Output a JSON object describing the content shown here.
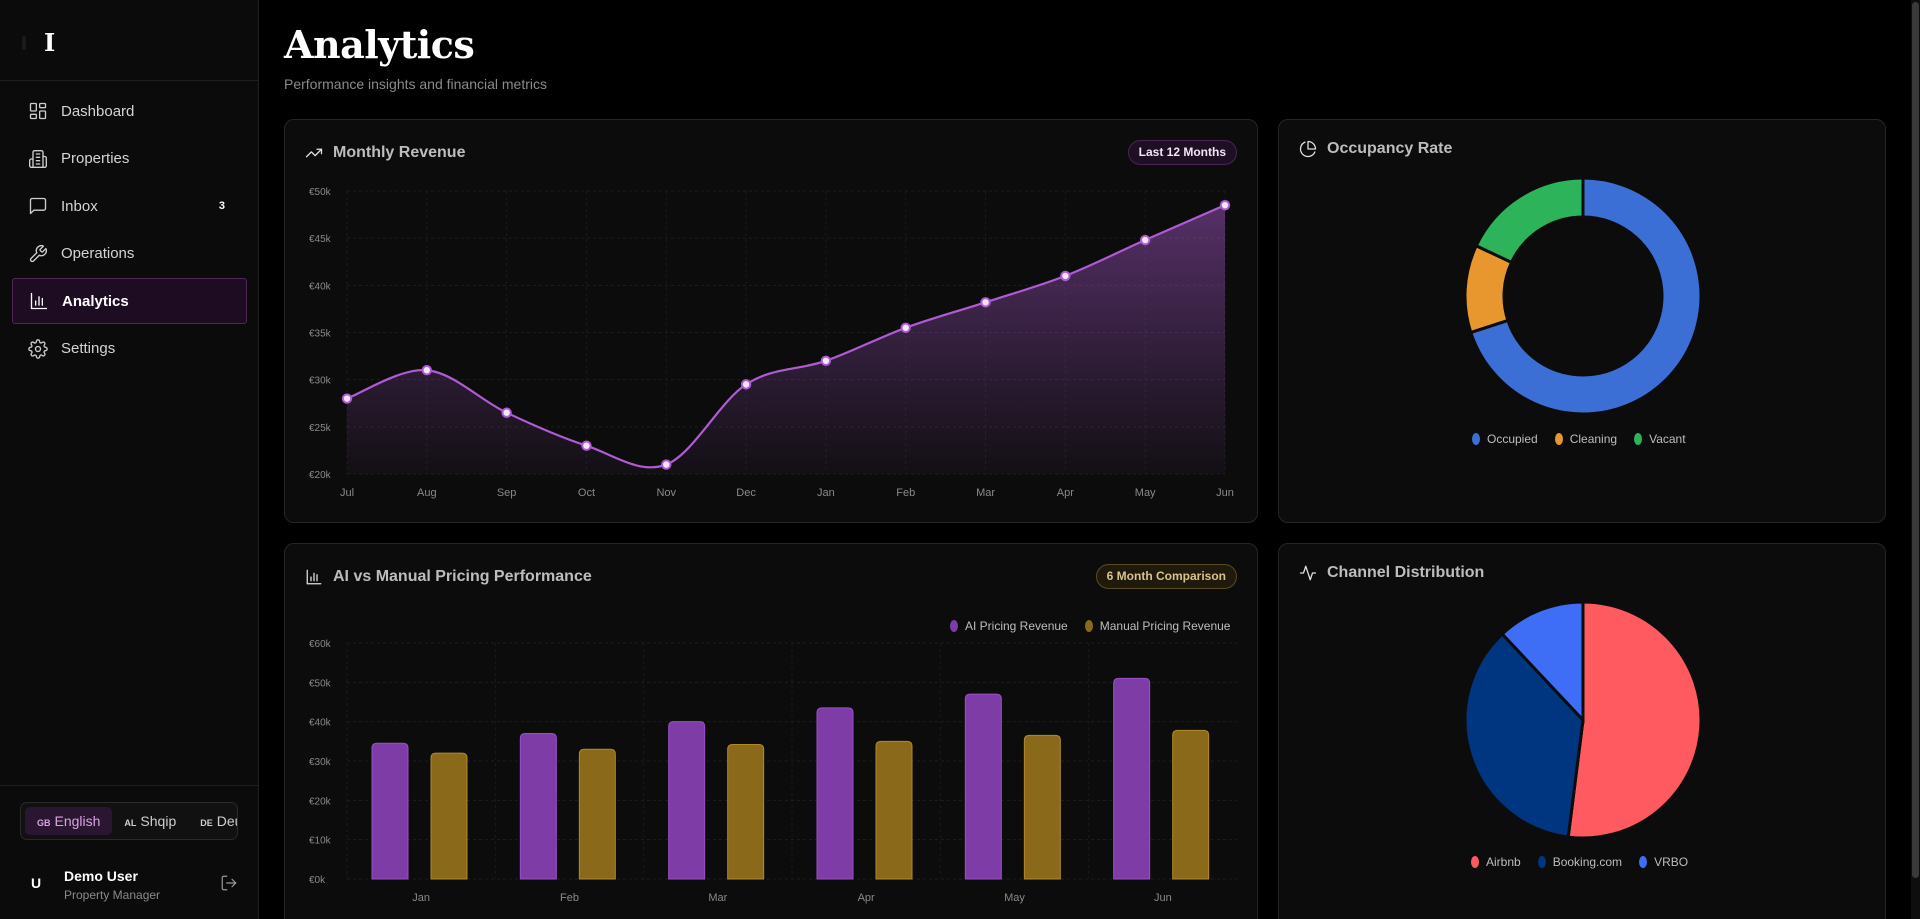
{
  "brand": {
    "logo_text": "I"
  },
  "sidebar": {
    "items": [
      {
        "label": "Dashboard",
        "icon": "layout-grid-icon"
      },
      {
        "label": "Properties",
        "icon": "building-icon"
      },
      {
        "label": "Inbox",
        "icon": "message-square-icon",
        "badge": "3"
      },
      {
        "label": "Operations",
        "icon": "wrench-icon"
      },
      {
        "label": "Analytics",
        "icon": "bar-chart-icon",
        "active": true
      },
      {
        "label": "Settings",
        "icon": "gear-icon"
      }
    ]
  },
  "languages": [
    {
      "code": "GB",
      "label": "English",
      "active": true
    },
    {
      "code": "AL",
      "label": "Shqip"
    },
    {
      "code": "DE",
      "label": "Deutsch"
    }
  ],
  "user": {
    "initial": "U",
    "name": "Demo User",
    "role": "Property Manager"
  },
  "page": {
    "title": "Analytics",
    "subtitle": "Performance insights and financial metrics"
  },
  "cards": {
    "revenue": {
      "title": "Monthly Revenue",
      "badge": "Last 12 Months"
    },
    "occupancy": {
      "title": "Occupancy Rate"
    },
    "pricing": {
      "title": "AI vs Manual Pricing Performance",
      "badge": "6 Month Comparison"
    },
    "channels": {
      "title": "Channel Distribution"
    }
  },
  "colors": {
    "accent_purple": "#b05bd6",
    "ai_bar": "#7e3da6",
    "manual_bar": "#8a6a1a",
    "occupied": "#3b6fd6",
    "cleaning": "#e8972e",
    "vacant": "#2db35a",
    "airbnb": "#ff5a5f",
    "booking": "#003580",
    "vrbo": "#3d6ef5"
  },
  "chart_data": [
    {
      "type": "area",
      "title": "Monthly Revenue",
      "categories": [
        "Jul",
        "Aug",
        "Sep",
        "Oct",
        "Nov",
        "Dec",
        "Jan",
        "Feb",
        "Mar",
        "Apr",
        "May",
        "Jun"
      ],
      "values": [
        28000,
        31000,
        26500,
        23000,
        21000,
        29500,
        32000,
        35500,
        38200,
        41000,
        44800,
        48500
      ],
      "ylim": [
        20000,
        50000
      ],
      "yticks": [
        "€20k",
        "€25k",
        "€30k",
        "€35k",
        "€40k",
        "€45k",
        "€50k"
      ],
      "grid": true
    },
    {
      "type": "pie",
      "title": "Occupancy Rate",
      "donut": true,
      "labels": [
        "Occupied",
        "Cleaning",
        "Vacant"
      ],
      "values": [
        70,
        12,
        18
      ],
      "legend": "bottom"
    },
    {
      "type": "bar",
      "title": "AI vs Manual Pricing Performance",
      "categories": [
        "Jan",
        "Feb",
        "Mar",
        "Apr",
        "May",
        "Jun"
      ],
      "series": [
        {
          "name": "AI Pricing Revenue",
          "values": [
            34500,
            37000,
            40000,
            43500,
            47000,
            51000
          ]
        },
        {
          "name": "Manual Pricing Revenue",
          "values": [
            32000,
            33000,
            34200,
            35000,
            36500,
            37800
          ]
        }
      ],
      "ylim": [
        0,
        60000
      ],
      "yticks": [
        "€0k",
        "€10k",
        "€20k",
        "€30k",
        "€40k",
        "€50k",
        "€60k"
      ],
      "legend": "top-right",
      "grid": true
    },
    {
      "type": "pie",
      "title": "Channel Distribution",
      "labels": [
        "Airbnb",
        "Booking.com",
        "VRBO"
      ],
      "values": [
        52,
        36,
        12
      ],
      "legend": "bottom"
    }
  ]
}
